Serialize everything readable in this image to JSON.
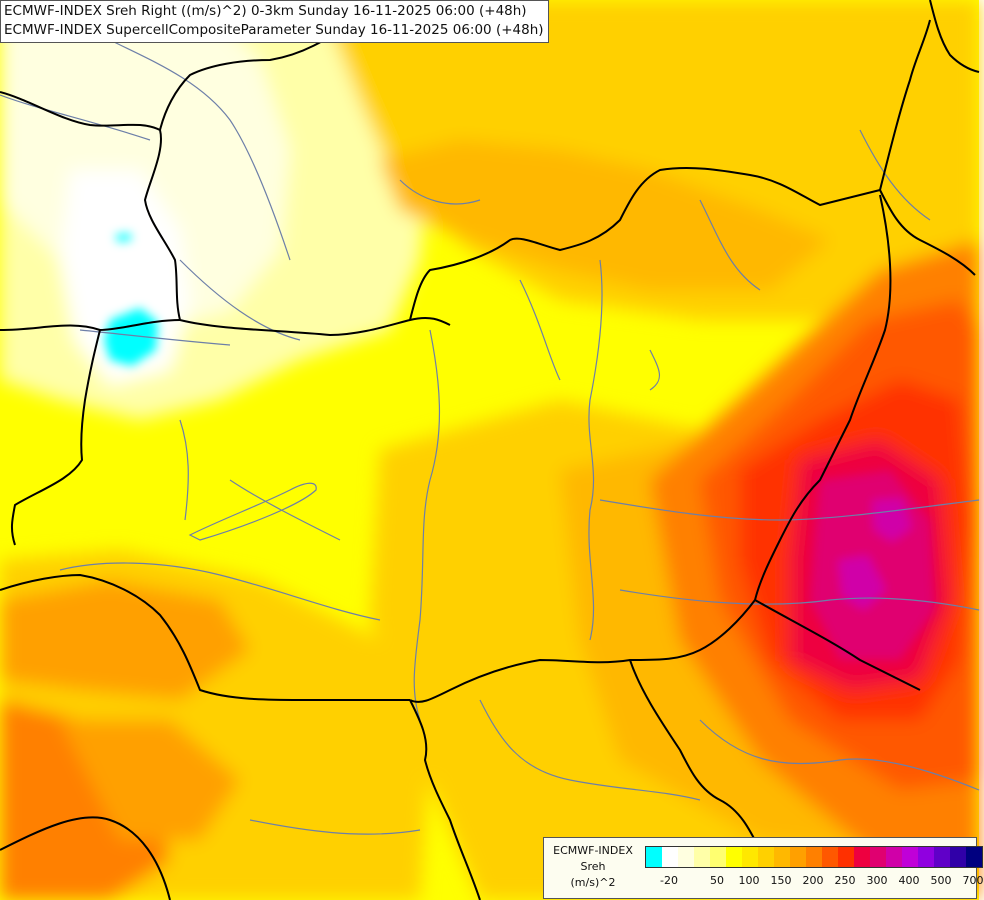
{
  "title": {
    "line1": "ECMWF-INDEX Sreh Right ((m/s)^2) 0-3km Sunday 16-11-2025 06:00 (+48h)",
    "line2": "ECMWF-INDEX SupercellCompositeParameter Sunday 16-11-2025 06:00 (+48h)"
  },
  "legend": {
    "line1": "ECMWF-INDEX",
    "line2": "Sreh",
    "line3": "(m/s)^2",
    "colors": [
      "#00ffff",
      "#ffffff",
      "#ffffe0",
      "#ffffa8",
      "#ffff70",
      "#ffff00",
      "#ffe800",
      "#ffd000",
      "#ffb800",
      "#ffa000",
      "#ff8000",
      "#ff5800",
      "#ff3000",
      "#ee0040",
      "#e00070",
      "#d000a8",
      "#c000d8",
      "#9000e0",
      "#6000c8",
      "#3000a8",
      "#000080"
    ],
    "ticks": [
      "-20",
      "50",
      "100",
      "150",
      "200",
      "250",
      "300",
      "400",
      "500",
      "700"
    ]
  },
  "fields": {
    "background": "#ffff00",
    "border_color": "#000000",
    "river_color": "#6d7fa8"
  }
}
